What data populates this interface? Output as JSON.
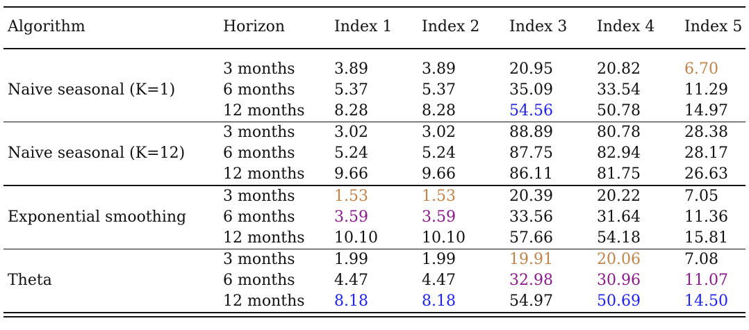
{
  "colors": {
    "black": "#111111",
    "brown": "#c0834a",
    "purple": "#8a1a8a",
    "blue": "#1f22e8"
  },
  "table": {
    "headers": [
      "Algorithm",
      "Horizon",
      "Index 1",
      "Index 2",
      "Index 3",
      "Index 4",
      "Index 5"
    ],
    "groups": [
      {
        "algorithm": "Naive seasonal (K=1)",
        "rows": [
          {
            "horizon": "3 months",
            "values": [
              "3.89",
              "3.89",
              "20.95",
              "20.82",
              "6.70"
            ],
            "colors": [
              "black",
              "black",
              "black",
              "black",
              "brown"
            ]
          },
          {
            "horizon": "6 months",
            "values": [
              "5.37",
              "5.37",
              "35.09",
              "33.54",
              "11.29"
            ],
            "colors": [
              "black",
              "black",
              "black",
              "black",
              "black"
            ]
          },
          {
            "horizon": "12 months",
            "values": [
              "8.28",
              "8.28",
              "54.56",
              "50.78",
              "14.97"
            ],
            "colors": [
              "black",
              "black",
              "blue",
              "black",
              "black"
            ]
          }
        ]
      },
      {
        "algorithm": "Naive seasonal (K=12)",
        "rows": [
          {
            "horizon": "3 months",
            "values": [
              "3.02",
              "3.02",
              "88.89",
              "80.78",
              "28.38"
            ],
            "colors": [
              "black",
              "black",
              "black",
              "black",
              "black"
            ]
          },
          {
            "horizon": "6 months",
            "values": [
              "5.24",
              "5.24",
              "87.75",
              "82.94",
              "28.17"
            ],
            "colors": [
              "black",
              "black",
              "black",
              "black",
              "black"
            ]
          },
          {
            "horizon": "12 months",
            "values": [
              "9.66",
              "9.66",
              "86.11",
              "81.75",
              "26.63"
            ],
            "colors": [
              "black",
              "black",
              "black",
              "black",
              "black"
            ]
          }
        ]
      },
      {
        "algorithm": "Exponential smoothing",
        "rows": [
          {
            "horizon": "3 months",
            "values": [
              "1.53",
              "1.53",
              "20.39",
              "20.22",
              "7.05"
            ],
            "colors": [
              "brown",
              "brown",
              "black",
              "black",
              "black"
            ]
          },
          {
            "horizon": "6 months",
            "values": [
              "3.59",
              "3.59",
              "33.56",
              "31.64",
              "11.36"
            ],
            "colors": [
              "purple",
              "purple",
              "black",
              "black",
              "black"
            ]
          },
          {
            "horizon": "12 months",
            "values": [
              "10.10",
              "10.10",
              "57.66",
              "54.18",
              "15.81"
            ],
            "colors": [
              "black",
              "black",
              "black",
              "black",
              "black"
            ]
          }
        ]
      },
      {
        "algorithm": "Theta",
        "rows": [
          {
            "horizon": "3 months",
            "values": [
              "1.99",
              "1.99",
              "19.91",
              "20.06",
              "7.08"
            ],
            "colors": [
              "black",
              "black",
              "brown",
              "brown",
              "black"
            ]
          },
          {
            "horizon": "6 months",
            "values": [
              "4.47",
              "4.47",
              "32.98",
              "30.96",
              "11.07"
            ],
            "colors": [
              "black",
              "black",
              "purple",
              "purple",
              "purple"
            ]
          },
          {
            "horizon": "12 months",
            "values": [
              "8.18",
              "8.18",
              "54.97",
              "50.69",
              "14.50"
            ],
            "colors": [
              "blue",
              "blue",
              "black",
              "blue",
              "blue"
            ]
          }
        ]
      }
    ]
  }
}
